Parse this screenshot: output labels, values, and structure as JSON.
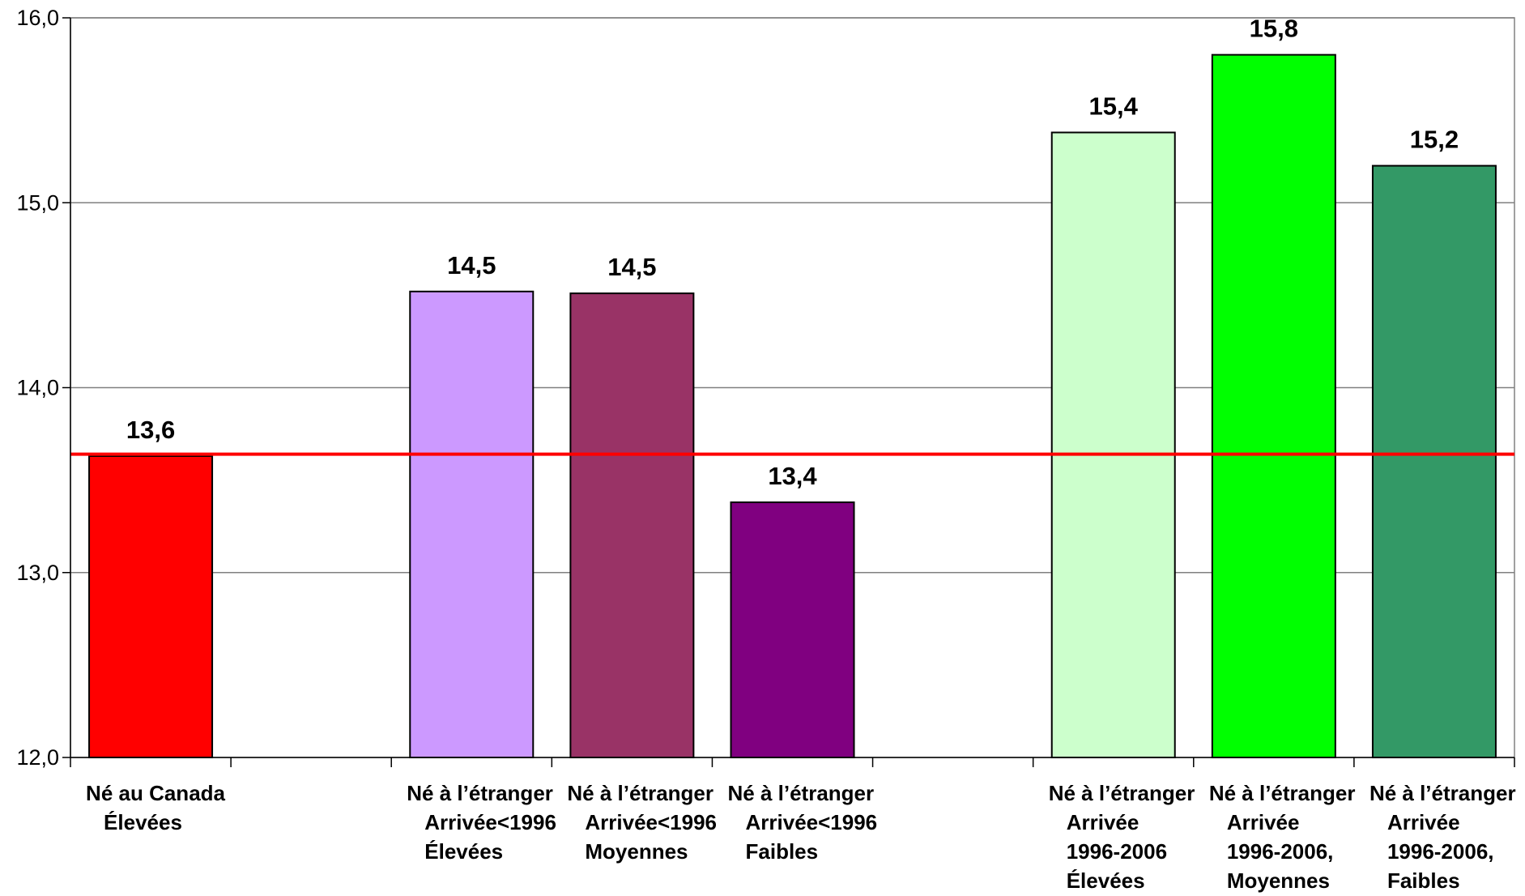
{
  "chart_data": {
    "type": "bar",
    "title": "",
    "xlabel": "",
    "ylabel": "",
    "ylim": [
      12.0,
      16.0
    ],
    "yticks": [
      "12,0",
      "13,0",
      "14,0",
      "15,0",
      "16,0"
    ],
    "grid": true,
    "reference_line": {
      "value": 13.64,
      "color": "#ff0000"
    },
    "categories": [
      {
        "lines": [
          "Né au Canada",
          "Élevées"
        ],
        "value": 13.63,
        "label": "13,6",
        "color": "#ff0000"
      },
      null,
      {
        "lines": [
          "Né à l’étranger",
          "Arrivée<1996",
          "Élevées"
        ],
        "value": 14.52,
        "label": "14,5",
        "color": "#cc99ff"
      },
      {
        "lines": [
          "Né à l’étranger",
          "Arrivée<1996",
          "Moyennes"
        ],
        "value": 14.51,
        "label": "14,5",
        "color": "#993366"
      },
      {
        "lines": [
          "Né à l’étranger",
          "Arrivée<1996",
          "Faibles"
        ],
        "value": 13.38,
        "label": "13,4",
        "color": "#800080"
      },
      null,
      {
        "lines": [
          "Né à l’étranger",
          "Arrivée",
          "1996-2006",
          "Élevées"
        ],
        "value": 15.38,
        "label": "15,4",
        "color": "#ccffcc"
      },
      {
        "lines": [
          "Né à l’étranger",
          "Arrivée",
          "1996-2006,",
          "Moyennes"
        ],
        "value": 15.8,
        "label": "15,8",
        "color": "#00ff00"
      },
      {
        "lines": [
          "Né à l’étranger",
          "Arrivée",
          "1996-2006,",
          "Faibles"
        ],
        "value": 15.2,
        "label": "15,2",
        "color": "#339966"
      }
    ]
  }
}
